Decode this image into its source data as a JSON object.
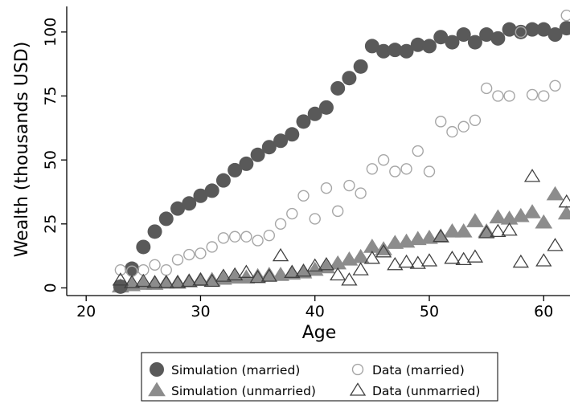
{
  "chart_data": {
    "type": "scatter",
    "title": "",
    "xlabel": "Age",
    "ylabel": "Wealth (thousands USD)",
    "xlim": [
      18.3,
      62.3
    ],
    "ylim": [
      -3,
      110
    ],
    "xticks": [
      20,
      30,
      40,
      50,
      60
    ],
    "yticks": [
      0,
      25,
      50,
      75,
      100
    ],
    "grid": false,
    "legend_position": "bottom",
    "colors": {
      "simulation": "#595959",
      "data": "#a6a6a6",
      "data_unmarried": "#404040",
      "axis": "#000000"
    },
    "series": [
      {
        "name": "Simulation (married)",
        "marker": "filled-circle",
        "x": [
          23,
          24,
          25,
          26,
          27,
          28,
          29,
          30,
          31,
          32,
          33,
          34,
          35,
          36,
          37,
          38,
          39,
          40,
          41,
          42,
          43,
          44,
          45,
          46,
          47,
          48,
          49,
          50,
          51,
          52,
          53,
          54,
          55,
          56,
          57,
          58,
          59,
          60,
          61,
          62
        ],
        "y": [
          0.5,
          7.5,
          16,
          22,
          27,
          31,
          33,
          36,
          38,
          42,
          46,
          48.5,
          52,
          55,
          57.5,
          60,
          65,
          68,
          70.5,
          78,
          82,
          86.5,
          94.5,
          92.5,
          93,
          92.5,
          95,
          94.5,
          98,
          96,
          99,
          96,
          99,
          97.5,
          101,
          100,
          101,
          101,
          99,
          101.5
        ]
      },
      {
        "name": "Data (married)",
        "marker": "hollow-circle",
        "x": [
          23,
          24,
          25,
          26,
          27,
          28,
          29,
          30,
          31,
          32,
          33,
          34,
          35,
          36,
          37,
          38,
          39,
          40,
          41,
          42,
          43,
          44,
          45,
          46,
          47,
          48,
          49,
          50,
          51,
          52,
          53,
          54,
          55,
          56,
          57,
          58,
          59,
          60,
          61,
          62
        ],
        "y": [
          7,
          6.5,
          7,
          9,
          7,
          11,
          13,
          13.5,
          16,
          19.5,
          20,
          20,
          18.5,
          20.5,
          25,
          29,
          36,
          27,
          39,
          30,
          40,
          37,
          46.5,
          50,
          45.5,
          46.5,
          53.5,
          45.5,
          65,
          61,
          63,
          65.5,
          78,
          75,
          75,
          100,
          75.5,
          75,
          79,
          106.5
        ]
      },
      {
        "name": "Simulation (unmarried)",
        "marker": "filled-triangle",
        "x": [
          23,
          24,
          25,
          26,
          27,
          28,
          29,
          30,
          31,
          32,
          33,
          34,
          35,
          36,
          37,
          38,
          39,
          40,
          41,
          42,
          43,
          44,
          45,
          46,
          47,
          48,
          49,
          50,
          51,
          52,
          53,
          54,
          55,
          56,
          57,
          58,
          59,
          60,
          61,
          62
        ],
        "y": [
          0.5,
          1,
          1.5,
          1.5,
          2,
          2,
          2.5,
          3,
          3,
          3.5,
          4,
          4,
          4.5,
          5,
          5,
          5.5,
          6,
          7,
          8,
          9.5,
          11,
          12,
          16,
          15,
          17.5,
          18,
          19,
          19.5,
          20,
          22,
          22,
          26,
          22,
          27.5,
          27,
          28,
          29.5,
          25.5,
          36.5,
          29
        ]
      },
      {
        "name": "Data (unmarried)",
        "marker": "hollow-triangle",
        "x": [
          23,
          24,
          25,
          26,
          27,
          28,
          29,
          30,
          31,
          32,
          33,
          34,
          35,
          36,
          37,
          38,
          39,
          40,
          41,
          42,
          43,
          44,
          45,
          46,
          47,
          48,
          49,
          50,
          51,
          52,
          53,
          54,
          55,
          56,
          57,
          58,
          59,
          60,
          61,
          62
        ],
        "y": [
          3,
          2,
          2.5,
          2,
          2,
          2,
          2.5,
          3,
          2.5,
          4.5,
          5,
          6,
          4,
          4.5,
          12.5,
          6,
          6.5,
          8.5,
          9,
          5,
          3,
          7,
          11.5,
          14,
          9,
          10,
          9.5,
          10.5,
          20,
          11.5,
          11,
          12,
          21.5,
          22,
          22.5,
          10,
          43.5,
          10.5,
          16.5,
          33.5
        ]
      }
    ]
  }
}
